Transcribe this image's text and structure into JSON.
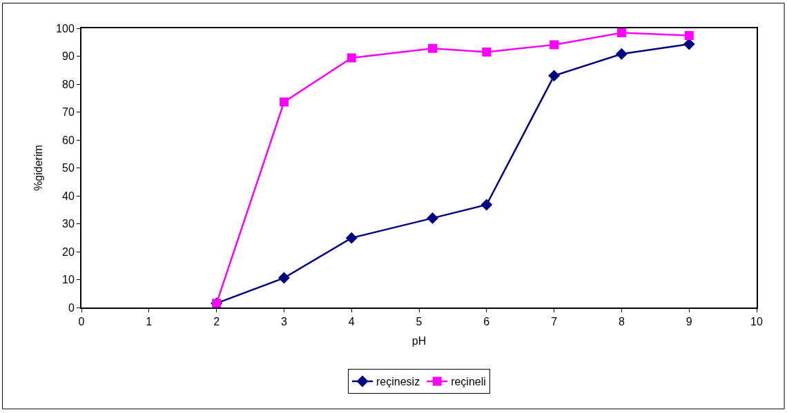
{
  "chart_data": {
    "type": "line",
    "xlabel": "pH",
    "ylabel": "%giderim",
    "x": [
      2,
      3,
      4,
      5.2,
      6,
      7,
      8,
      9
    ],
    "series": [
      {
        "name": "reçinesiz",
        "color": "#000080",
        "marker": "diamond",
        "values": [
          1.5,
          10.6,
          24.9,
          32,
          36.8,
          83,
          90.8,
          94.3
        ]
      },
      {
        "name": "reçineli",
        "color": "#ff00ff",
        "marker": "square",
        "values": [
          1.5,
          73.6,
          89.4,
          92.8,
          91.5,
          94.1,
          98.4,
          97.4
        ]
      }
    ],
    "xlim": [
      0,
      10
    ],
    "xticks": [
      0,
      1,
      2,
      3,
      4,
      5,
      6,
      7,
      8,
      9,
      10
    ],
    "ylim": [
      0,
      100
    ],
    "yticks": [
      0,
      10,
      20,
      30,
      40,
      50,
      60,
      70,
      80,
      90,
      100
    ],
    "legend": "bottom",
    "line_style": "solid"
  }
}
